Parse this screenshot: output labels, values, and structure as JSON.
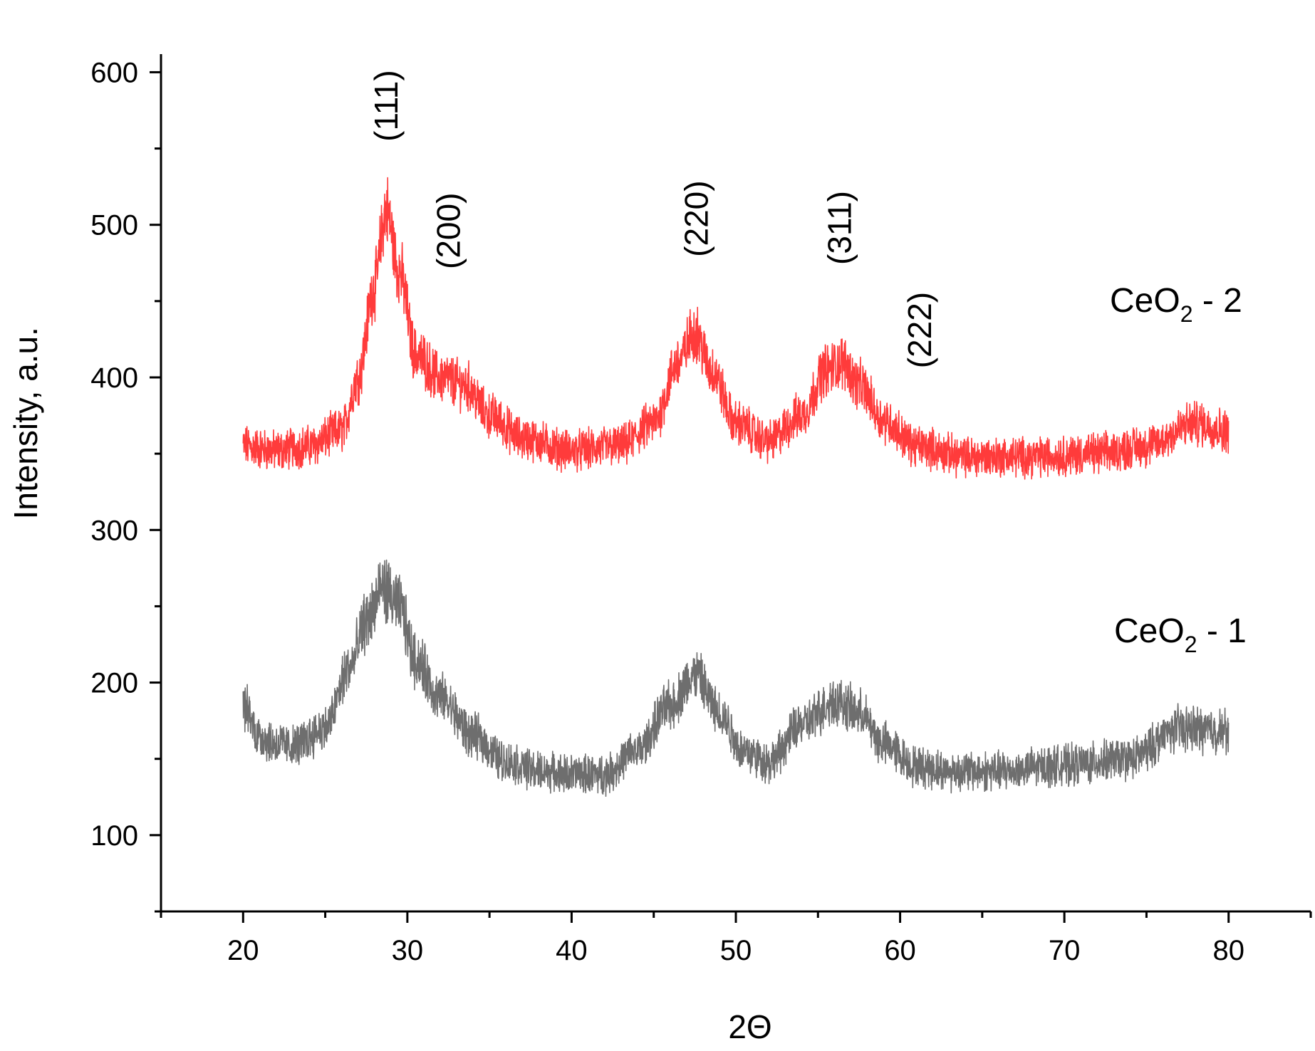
{
  "chart_data": {
    "type": "line",
    "title": "",
    "xlabel": "2Θ",
    "ylabel": "Intensity, a.u.",
    "xlim": [
      15,
      85
    ],
    "ylim": [
      50,
      610
    ],
    "x_ticks": [
      20,
      30,
      40,
      50,
      60,
      70,
      80
    ],
    "y_ticks": [
      100,
      200,
      300,
      400,
      500,
      600
    ],
    "x_tick_labels": [
      "20",
      "30",
      "40",
      "50",
      "60",
      "70",
      "80"
    ],
    "y_tick_labels": [
      "100",
      "200",
      "300",
      "400",
      "500",
      "600"
    ],
    "grid": false,
    "series": [
      {
        "name": "CeO2 - 2",
        "label_main": "CeO",
        "label_sub": "2",
        "label_tail": " - 2",
        "color": "#ff3b3b",
        "baseline": 352,
        "noise": 16,
        "x": [
          20,
          22,
          24,
          26,
          27,
          28,
          28.7,
          29.5,
          30.5,
          32,
          33.5,
          35,
          37,
          40,
          43,
          45,
          46.5,
          47.5,
          48.5,
          50,
          52,
          54,
          55.5,
          56.5,
          57.5,
          59,
          61,
          64,
          68,
          72,
          75,
          78,
          80
        ],
        "y": [
          355,
          352,
          355,
          365,
          400,
          460,
          510,
          470,
          415,
          400,
          395,
          375,
          360,
          352,
          355,
          370,
          410,
          430,
          405,
          370,
          358,
          375,
          405,
          410,
          395,
          372,
          355,
          348,
          348,
          350,
          355,
          370,
          365
        ]
      },
      {
        "name": "CeO2 - 1",
        "label_main": "CeO",
        "label_sub": "2",
        "label_tail": " - 1",
        "color": "#6e6e6e",
        "baseline": 150,
        "noise": 16,
        "x": [
          20,
          21,
          22,
          23,
          25,
          26.5,
          27.5,
          28.5,
          29.5,
          30.5,
          32,
          34,
          36,
          38,
          40,
          42,
          44,
          46,
          47.5,
          49,
          50.5,
          52,
          54,
          56,
          57.5,
          59,
          61,
          63,
          66,
          70,
          74,
          77,
          80
        ],
        "y": [
          185,
          165,
          160,
          158,
          170,
          210,
          240,
          262,
          250,
          215,
          190,
          165,
          148,
          142,
          140,
          140,
          155,
          185,
          205,
          180,
          155,
          148,
          172,
          188,
          180,
          160,
          145,
          142,
          142,
          146,
          150,
          170,
          168
        ]
      }
    ],
    "annotations": [
      {
        "text": "(111)",
        "x": 28.7,
        "y": 578,
        "rotation": -90
      },
      {
        "text": "(200)",
        "x": 32.5,
        "y": 496,
        "rotation": -90
      },
      {
        "text": "(220)",
        "x": 47.6,
        "y": 504,
        "rotation": -90
      },
      {
        "text": "(311)",
        "x": 56.3,
        "y": 498,
        "rotation": -90
      },
      {
        "text": "(222)",
        "x": 61.2,
        "y": 431,
        "rotation": -90
      }
    ]
  }
}
